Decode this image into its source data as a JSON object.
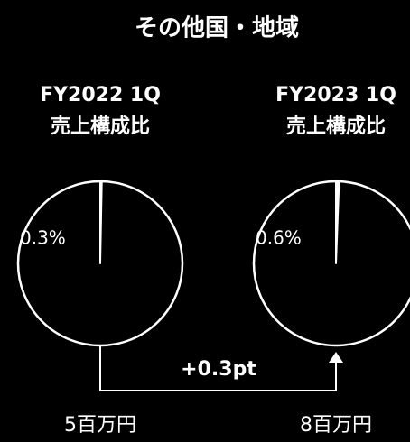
{
  "title": "その他国・地域",
  "annotation": "+0.3pt",
  "chart_data": [
    {
      "type": "pie",
      "title": "FY2022 1Q",
      "subtitle": "売上構成比",
      "values": [
        0.3
      ],
      "value_labels": [
        "0.3%"
      ],
      "color": "#ffffff",
      "caption": "5百万円"
    },
    {
      "type": "pie",
      "title": "FY2023 1Q",
      "subtitle": "売上構成比",
      "values": [
        0.6
      ],
      "value_labels": [
        "0.6%"
      ],
      "color": "#ffffff",
      "caption": "8百万円"
    }
  ]
}
